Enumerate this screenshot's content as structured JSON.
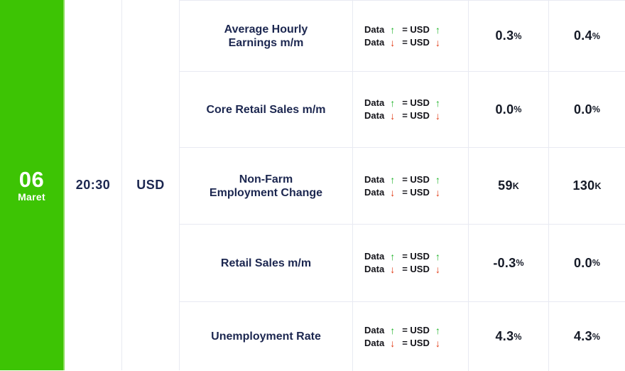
{
  "colors": {
    "green": "#3dc404",
    "green_edge": "#8bdb5e",
    "navy": "#1c2750",
    "dark": "#151a27",
    "rules_text": "#131319",
    "up": "#1db327",
    "down": "#e0360f",
    "border": "#e8eaf2",
    "background": "#ffffff"
  },
  "date": {
    "day": "06",
    "month": "Maret"
  },
  "time": "20:30",
  "currency": "USD",
  "rules": {
    "data_label": "Data",
    "equals_label": "= USD",
    "up_arrow": "↑",
    "down_arrow": "↓"
  },
  "events": [
    {
      "name": "Average Hourly\nEarnings m/m",
      "value1": {
        "num": "0.3",
        "suffix": "%"
      },
      "value2": {
        "num": "0.4",
        "suffix": "%"
      }
    },
    {
      "name": "Core Retail Sales m/m",
      "value1": {
        "num": "0.0",
        "suffix": "%"
      },
      "value2": {
        "num": "0.0",
        "suffix": "%"
      }
    },
    {
      "name": "Non-Farm\nEmployment Change",
      "value1": {
        "num": "59",
        "suffix": "K"
      },
      "value2": {
        "num": "130",
        "suffix": "K"
      }
    },
    {
      "name": "Retail Sales m/m",
      "value1": {
        "num": "-0.3",
        "suffix": "%"
      },
      "value2": {
        "num": "0.0",
        "suffix": "%"
      }
    },
    {
      "name": "Unemployment Rate",
      "value1": {
        "num": "4.3",
        "suffix": "%"
      },
      "value2": {
        "num": "4.3",
        "suffix": "%"
      }
    }
  ]
}
